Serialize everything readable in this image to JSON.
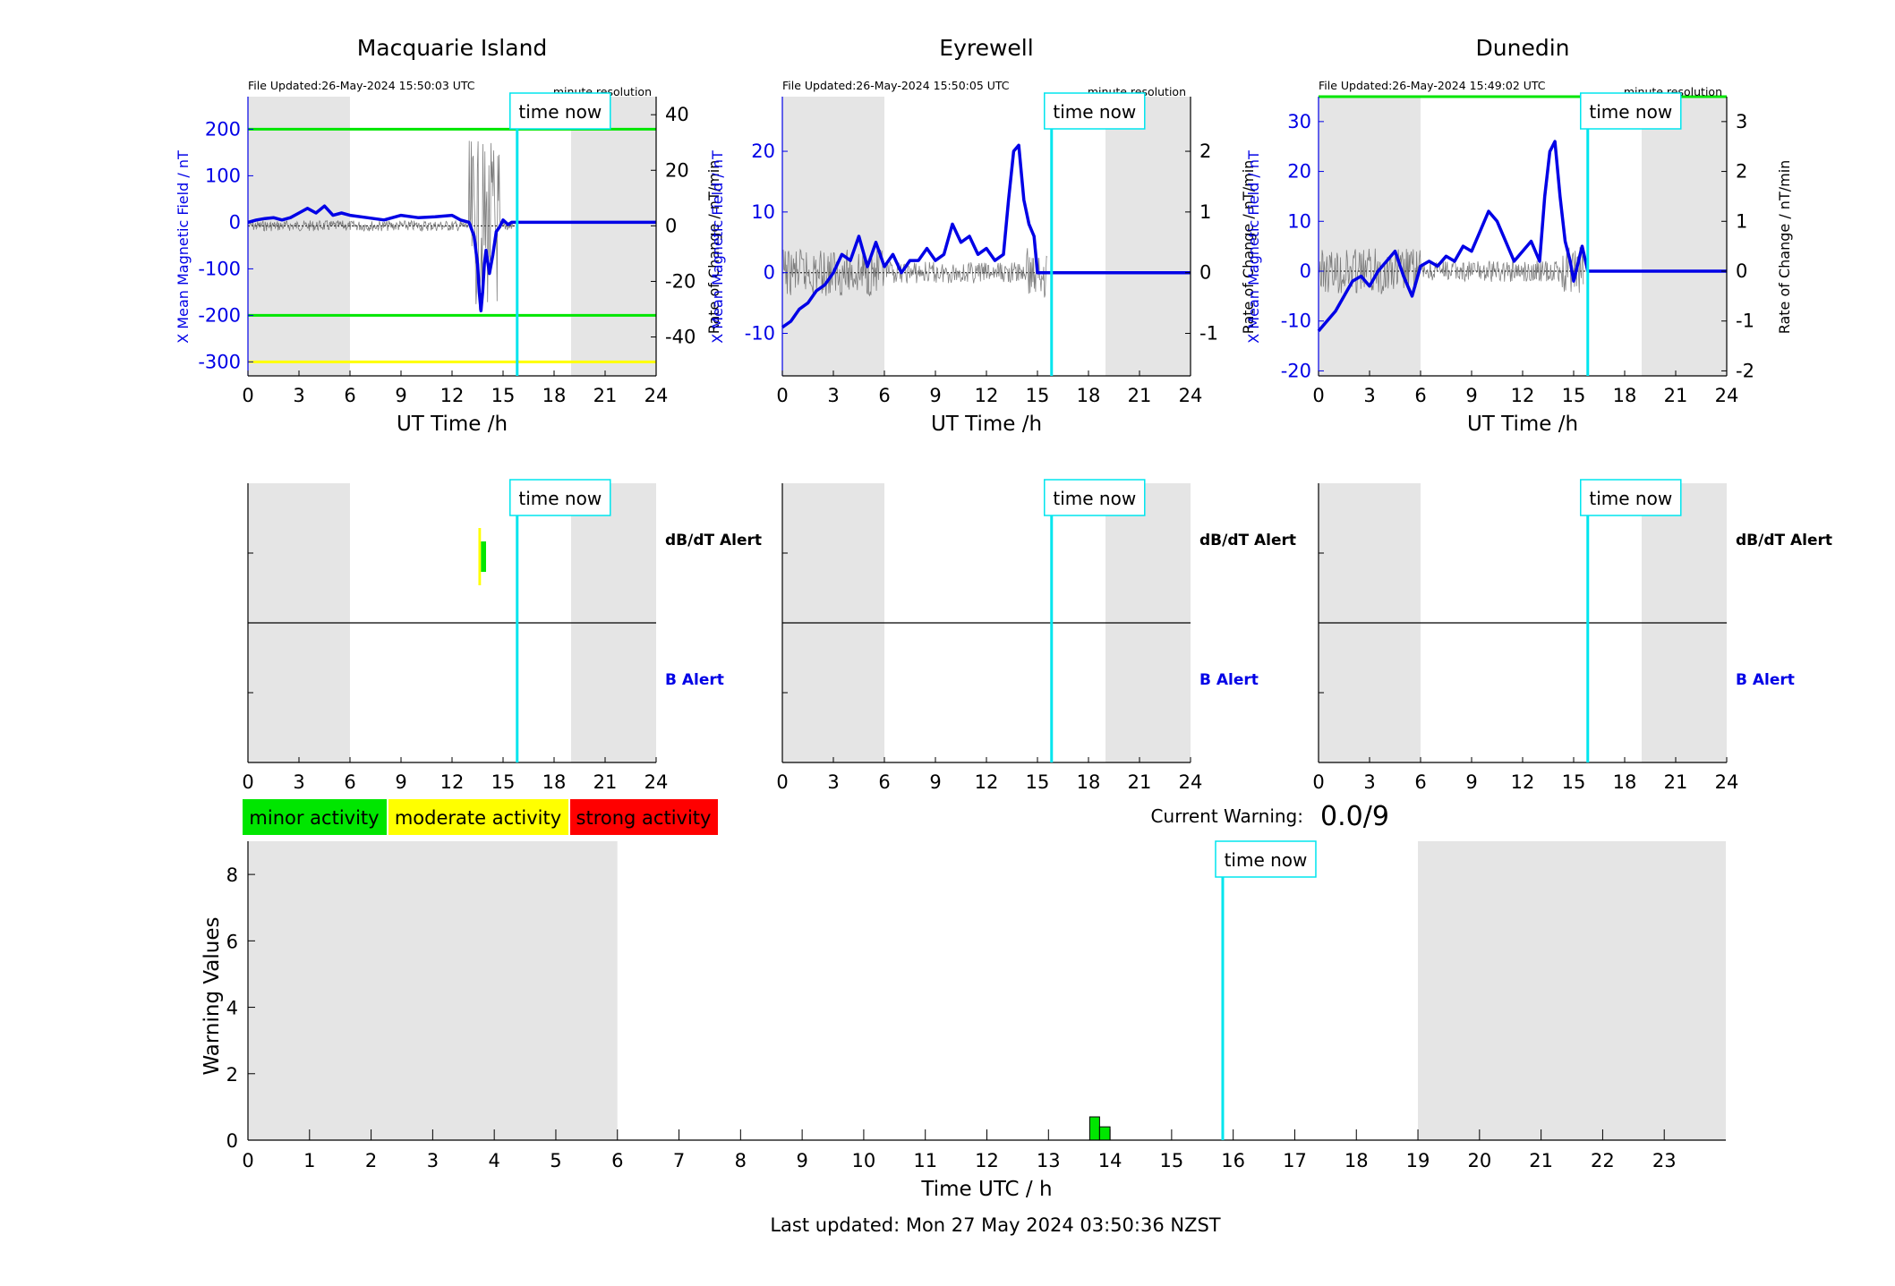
{
  "colors": {
    "shade": "#e5e5e5",
    "now": "#00e5ee",
    "trace": "#0000e6",
    "rate": "#606060",
    "green": "#00e600",
    "yellow": "#ffff00",
    "red": "#ff0000",
    "alert_b": "#0000e6"
  },
  "time_now_label": "time now",
  "time_now_hour": 15.83,
  "resolution_label": "minute resolution",
  "xlabel_top": "UT Time /h",
  "ylabel_left": "X Mean Magnetic Field / nT",
  "ylabel_right": "Rate of Change / nT/min",
  "legend": {
    "minor": "minor activity",
    "moderate": "moderate activity",
    "strong": "strong activity"
  },
  "alert_labels": {
    "dbdt": "dB/dT Alert",
    "b": "B Alert"
  },
  "current_warning_label": "Current Warning:",
  "current_warning_value": "0.0/9",
  "footer": "Last updated: Mon 27 May 2024 03:50:36 NZST",
  "chart_data": [
    {
      "type": "line",
      "title": "Macquarie Island",
      "file_updated": "File Updated:26-May-2024 15:50:03 UTC",
      "xlabel": "UT Time /h",
      "xlim": [
        0,
        24
      ],
      "xticks": [
        0,
        3,
        6,
        9,
        12,
        15,
        18,
        21,
        24
      ],
      "ylim_left": [
        -330,
        270
      ],
      "yticks_left": [
        -300,
        -200,
        -100,
        0,
        100,
        200
      ],
      "ylim_right": [
        -54,
        46.5
      ],
      "yticks_right": [
        -40,
        -20,
        0,
        20,
        40
      ],
      "shaded_hours": [
        [
          0,
          6
        ],
        [
          19,
          24
        ]
      ],
      "thresholds": [
        {
          "value": 200,
          "color": "green"
        },
        {
          "value": -200,
          "color": "green"
        },
        {
          "value": -300,
          "color": "yellow"
        }
      ],
      "series": [
        {
          "values_x": [
            0,
            0.5,
            1,
            1.5,
            2,
            2.5,
            3,
            3.5,
            4,
            4.5,
            5,
            5.5,
            6,
            7,
            8,
            9,
            10,
            11,
            12,
            12.5,
            13,
            13.3,
            13.5,
            13.6,
            13.7,
            13.8,
            13.9,
            14,
            14.2,
            14.4,
            14.6,
            14.8,
            15,
            15.3,
            15.5,
            15.83,
            24
          ],
          "values_y": [
            0,
            5,
            8,
            10,
            5,
            10,
            20,
            30,
            20,
            35,
            15,
            20,
            15,
            10,
            5,
            15,
            10,
            12,
            15,
            5,
            0,
            -30,
            -90,
            -150,
            -190,
            -150,
            -90,
            -60,
            -110,
            -70,
            -20,
            -10,
            5,
            -5,
            0,
            0,
            0
          ]
        }
      ]
    },
    {
      "type": "line",
      "title": "Eyrewell",
      "file_updated": "File Updated:26-May-2024 15:50:05 UTC",
      "xlabel": "UT Time /h",
      "xlim": [
        0,
        24
      ],
      "xticks": [
        0,
        3,
        6,
        9,
        12,
        15,
        18,
        21,
        24
      ],
      "ylim_left": [
        -17,
        29
      ],
      "yticks_left": [
        -10,
        0,
        10,
        20
      ],
      "ylim_right": [
        -1.7,
        2.9
      ],
      "yticks_right": [
        -1,
        0,
        1,
        2
      ],
      "shaded_hours": [
        [
          0,
          6
        ],
        [
          19,
          24
        ]
      ],
      "thresholds": [],
      "series": [
        {
          "values_x": [
            0,
            0.5,
            1,
            1.5,
            2,
            2.5,
            3,
            3.5,
            4,
            4.5,
            5,
            5.5,
            6,
            6.5,
            7,
            7.5,
            8,
            8.5,
            9,
            9.5,
            10,
            10.5,
            11,
            11.5,
            12,
            12.5,
            13,
            13.3,
            13.6,
            13.9,
            14.2,
            14.5,
            14.8,
            15,
            15.83,
            24
          ],
          "values_y": [
            -9,
            -8,
            -6,
            -5,
            -3,
            -2,
            0,
            3,
            2,
            6,
            1,
            5,
            1,
            3,
            0,
            2,
            2,
            4,
            2,
            3,
            8,
            5,
            6,
            3,
            4,
            2,
            3,
            12,
            20,
            21,
            12,
            8,
            6,
            0,
            0,
            0
          ]
        }
      ]
    },
    {
      "type": "line",
      "title": "Dunedin",
      "file_updated": "File Updated:26-May-2024 15:49:02 UTC",
      "xlabel": "UT Time /h",
      "xlim": [
        0,
        24
      ],
      "xticks": [
        0,
        3,
        6,
        9,
        12,
        15,
        18,
        21,
        24
      ],
      "ylim_left": [
        -21,
        35
      ],
      "yticks_left": [
        -20,
        -10,
        0,
        10,
        20,
        30
      ],
      "ylim_right": [
        -2.1,
        3.5
      ],
      "yticks_right": [
        -2,
        -1,
        0,
        1,
        2,
        3
      ],
      "shaded_hours": [
        [
          0,
          6
        ],
        [
          19,
          24
        ]
      ],
      "thresholds": [
        {
          "value": 35,
          "color": "green"
        }
      ],
      "series": [
        {
          "values_x": [
            0,
            0.5,
            1,
            1.5,
            2,
            2.5,
            3,
            3.5,
            4,
            4.5,
            5,
            5.5,
            6,
            6.5,
            7,
            7.5,
            8,
            8.5,
            9,
            9.5,
            10,
            10.5,
            11,
            11.5,
            12,
            12.5,
            13,
            13.3,
            13.6,
            13.9,
            14.2,
            14.5,
            14.8,
            15,
            15.5,
            15.83,
            24
          ],
          "values_y": [
            -12,
            -10,
            -8,
            -5,
            -2,
            -1,
            -3,
            0,
            2,
            4,
            -1,
            -5,
            1,
            2,
            1,
            3,
            2,
            5,
            4,
            8,
            12,
            10,
            6,
            2,
            4,
            6,
            2,
            15,
            24,
            26,
            15,
            6,
            2,
            -2,
            5,
            0,
            0
          ]
        }
      ]
    },
    {
      "type": "bar",
      "title": "",
      "xlabel": "Time UTC / h",
      "ylabel": "Warning Values",
      "xlim": [
        0,
        24
      ],
      "xticks": [
        0,
        1,
        2,
        3,
        4,
        5,
        6,
        7,
        8,
        9,
        10,
        11,
        12,
        13,
        14,
        15,
        16,
        17,
        18,
        19,
        20,
        21,
        22,
        23
      ],
      "ylim": [
        0,
        9
      ],
      "yticks": [
        0,
        2,
        4,
        6,
        8
      ],
      "shaded_hours": [
        [
          0,
          6
        ],
        [
          19,
          24
        ]
      ],
      "bars": [
        {
          "start": 13.67,
          "end": 13.83,
          "value": 0.7
        },
        {
          "start": 13.83,
          "end": 14.0,
          "value": 0.4
        }
      ]
    }
  ],
  "alert_panels": [
    {
      "station": "Macquarie Island",
      "xticks": [
        0,
        3,
        6,
        9,
        12,
        15,
        18,
        21,
        24
      ],
      "shaded_hours": [
        [
          0,
          6
        ],
        [
          19,
          24
        ]
      ],
      "dbdt_events": [
        {
          "start": 13.55,
          "end": 13.7,
          "level": "moderate"
        },
        {
          "start": 13.7,
          "end": 14.0,
          "level": "minor"
        }
      ]
    },
    {
      "station": "Eyrewell",
      "xticks": [
        0,
        3,
        6,
        9,
        12,
        15,
        18,
        21,
        24
      ],
      "shaded_hours": [
        [
          0,
          6
        ],
        [
          19,
          24
        ]
      ],
      "dbdt_events": []
    },
    {
      "station": "Dunedin",
      "xticks": [
        0,
        3,
        6,
        9,
        12,
        15,
        18,
        21,
        24
      ],
      "shaded_hours": [
        [
          0,
          6
        ],
        [
          19,
          24
        ]
      ],
      "dbdt_events": []
    }
  ]
}
